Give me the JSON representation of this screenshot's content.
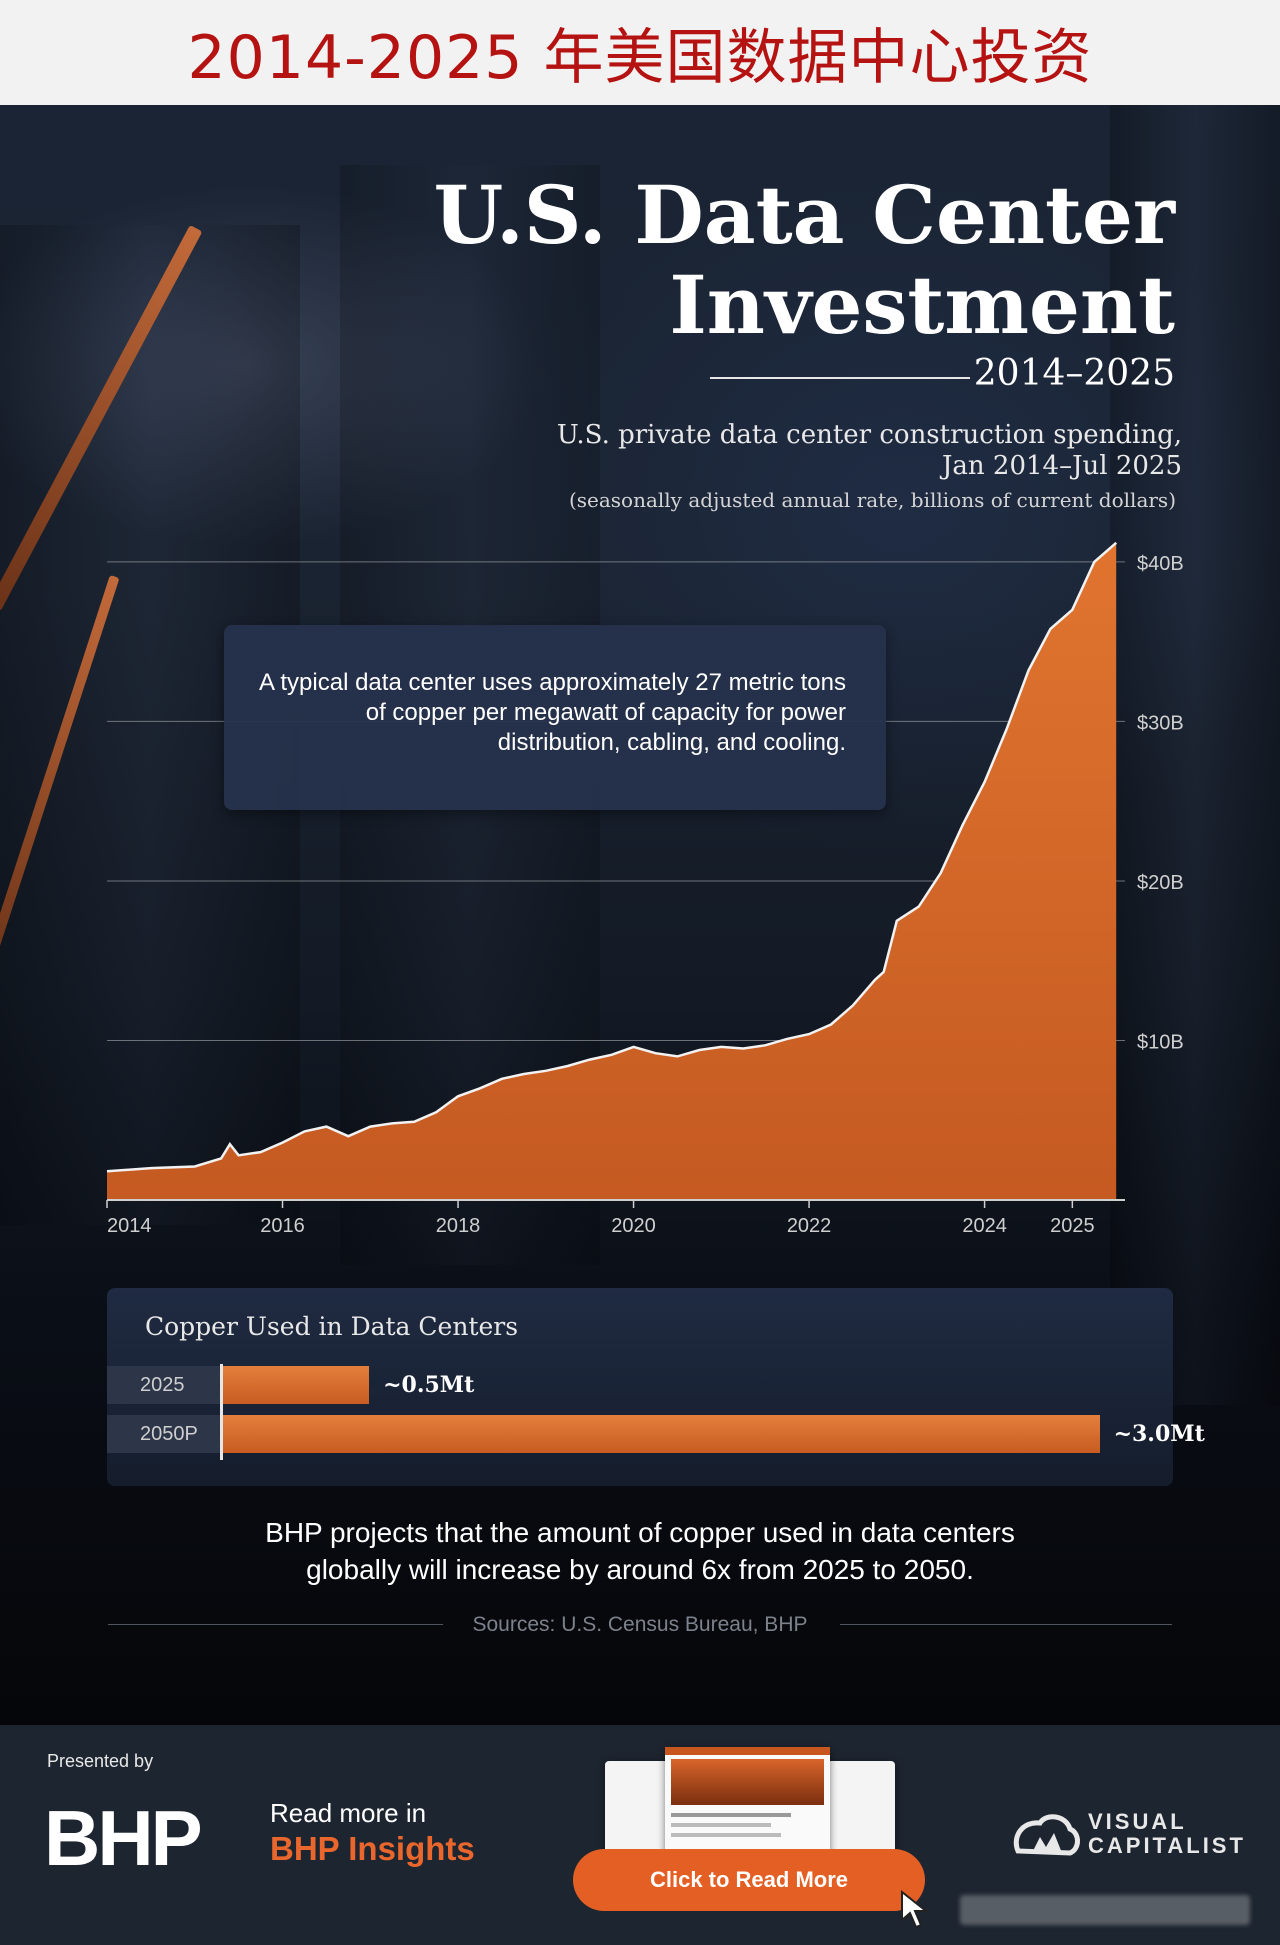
{
  "banner": {
    "title": "2014-2025 年美国数据中心投资"
  },
  "header": {
    "title_line1": "U.S. Data Center",
    "title_line2": "Investment",
    "years": "2014–2025",
    "subtitle_line1": "U.S. private data center construction spending,",
    "subtitle_line2": "Jan 2014–Jul 2025",
    "note": "(seasonally adjusted annual rate, billions of current dollars)"
  },
  "callout": {
    "text": "A typical data center uses approximately 27 metric tons of copper per megawatt of capacity for power distribution, cabling, and cooling."
  },
  "chart_data": [
    {
      "type": "area",
      "title": "U.S. Data Center Investment",
      "subtitle": "U.S. private data center construction spending, Jan 2014–Jul 2025",
      "ylabel": "(seasonally adjusted annual rate, billions of current dollars)",
      "xlabel": "",
      "ylim": [
        0,
        42
      ],
      "xlim": [
        2014.0,
        2025.6
      ],
      "grid": true,
      "color": "#d8682c",
      "y_ticks": [
        10,
        20,
        30,
        40
      ],
      "y_tick_labels": [
        "$10B",
        "$20B",
        "$30B",
        "$40B"
      ],
      "x_ticks": [
        2014,
        2016,
        2018,
        2020,
        2022,
        2024,
        2025
      ],
      "x_tick_labels": [
        "2014",
        "2016",
        "2018",
        "2020",
        "2022",
        "2024",
        "2025"
      ],
      "x": [
        2014.0,
        2014.5,
        2015.0,
        2015.3,
        2015.4,
        2015.5,
        2015.75,
        2016.0,
        2016.25,
        2016.5,
        2016.75,
        2017.0,
        2017.25,
        2017.5,
        2017.75,
        2018.0,
        2018.25,
        2018.5,
        2018.75,
        2019.0,
        2019.25,
        2019.5,
        2019.75,
        2020.0,
        2020.25,
        2020.5,
        2020.75,
        2021.0,
        2021.25,
        2021.5,
        2021.75,
        2022.0,
        2022.25,
        2022.5,
        2022.75,
        2022.85,
        2023.0,
        2023.25,
        2023.5,
        2023.75,
        2024.0,
        2024.25,
        2024.5,
        2024.75,
        2025.0,
        2025.25,
        2025.5
      ],
      "y": [
        1.8,
        2.0,
        2.1,
        2.6,
        3.5,
        2.8,
        3.0,
        3.6,
        4.3,
        4.6,
        4.0,
        4.6,
        4.8,
        4.9,
        5.5,
        6.5,
        7.0,
        7.6,
        7.9,
        8.1,
        8.4,
        8.8,
        9.1,
        9.6,
        9.2,
        9.0,
        9.4,
        9.6,
        9.5,
        9.7,
        10.1,
        10.4,
        11.0,
        12.2,
        13.8,
        14.3,
        17.5,
        18.4,
        20.5,
        23.5,
        26.2,
        29.5,
        33.2,
        35.8,
        37.0,
        40.0,
        41.2
      ]
    },
    {
      "type": "bar",
      "title": "Copper Used in Data Centers",
      "categories": [
        "2025",
        "2050P"
      ],
      "values": [
        0.5,
        3.0
      ],
      "value_labels": [
        "~0.5Mt",
        "~3.0Mt"
      ],
      "xlim": [
        0,
        3.2
      ],
      "color": "#d8682c"
    }
  ],
  "footnote": {
    "line1": "BHP projects that the amount of copper used in data centers",
    "line2": "globally will increase by around 6x from 2025 to 2050."
  },
  "sources": "Sources: U.S. Census Bureau, BHP",
  "footer": {
    "presented_by": "Presented by",
    "brand": "BHP",
    "read_more": "Read more in",
    "insights": "BHP Insights",
    "cta": "Click to Read More",
    "vc_line1": "VISUAL",
    "vc_line2": "CAPITALIST"
  }
}
